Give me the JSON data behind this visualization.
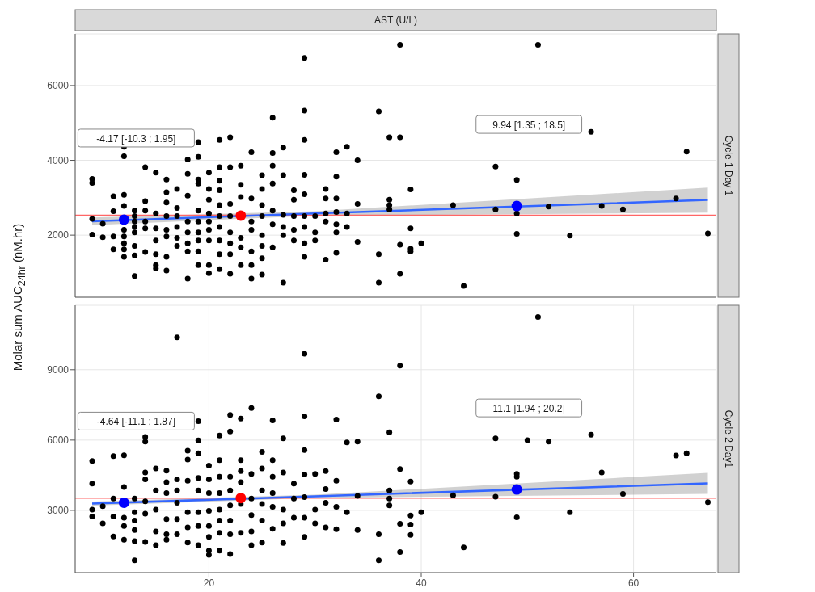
{
  "chart_data": [
    {
      "type": "scatter",
      "title": "AST (U/L)",
      "y2label": "Cycle 1 Day 1",
      "ylabel": "Molar sum AUC$_{24hr}$ (nM.hr)",
      "xlim": [
        7.4,
        67.8
      ],
      "xticks": [
        20,
        40,
        60
      ],
      "ylim": [
        340,
        7380
      ],
      "yticks": [
        2000,
        4000,
        6000
      ],
      "tick_labels": "y",
      "grid": true,
      "marker": "circle",
      "ref_lines": [
        {
          "axis": "y",
          "value": 2530,
          "color": "#ff6666"
        }
      ],
      "annotations": [
        "-4.17 [-10.3 ; 1.95]",
        "9.94 [1.35 ; 18.5]"
      ],
      "series": [
        {
          "type": "scatter",
          "color": "#000000",
          "x": [
            9,
            9,
            9,
            9,
            10,
            10,
            11,
            11,
            11,
            11,
            12,
            12,
            12,
            12,
            12,
            12,
            12,
            12,
            12,
            13,
            13,
            13,
            13,
            13,
            13,
            13,
            13,
            14,
            14,
            14,
            14,
            14,
            14,
            15,
            15,
            15,
            15,
            15,
            15,
            15,
            16,
            16,
            16,
            16,
            16,
            16,
            16,
            16,
            17,
            17,
            17,
            17,
            17,
            17,
            18,
            18,
            18,
            18,
            18,
            18,
            18,
            18,
            19,
            19,
            19,
            19,
            19,
            19,
            19,
            19,
            19,
            19,
            20,
            20,
            20,
            20,
            20,
            20,
            20,
            20,
            20,
            21,
            21,
            21,
            21,
            21,
            21,
            21,
            21,
            21,
            21,
            22,
            22,
            22,
            22,
            22,
            22,
            22,
            22,
            23,
            23,
            23,
            23,
            23,
            23,
            24,
            24,
            24,
            24,
            24,
            24,
            24,
            25,
            25,
            25,
            25,
            25,
            25,
            25,
            25,
            26,
            26,
            26,
            26,
            26,
            26,
            26,
            27,
            27,
            27,
            27,
            27,
            27,
            28,
            28,
            28,
            28,
            28,
            29,
            29,
            29,
            29,
            29,
            29,
            29,
            29,
            29,
            30,
            30,
            30,
            31,
            31,
            31,
            31,
            31,
            32,
            32,
            32,
            32,
            32,
            32,
            32,
            33,
            33,
            33,
            34,
            34,
            34,
            36,
            36,
            36,
            37,
            37,
            37,
            37,
            38,
            38,
            38,
            38,
            39,
            39,
            39,
            39,
            40,
            43,
            44,
            47,
            47,
            49,
            49,
            49,
            51,
            52,
            54,
            56,
            57,
            59,
            64,
            65,
            67
          ],
          "values": [
            3505,
            3396,
            2436,
            2015,
            2305,
            1942,
            3040,
            2640,
            1964,
            1622,
            4363,
            4108,
            3076,
            2778,
            2145,
            1964,
            1782,
            1622,
            1418,
            2654,
            2509,
            2364,
            2218,
            2073,
            1709,
            1455,
            909,
            3818,
            2909,
            2654,
            2364,
            2182,
            1549,
            3672,
            2582,
            2182,
            1855,
            1491,
            1200,
            1106,
            3490,
            3149,
            2872,
            2509,
            2145,
            1964,
            1418,
            1055,
            3236,
            2727,
            2509,
            2218,
            1927,
            1709,
            4021,
            3636,
            3054,
            2364,
            2073,
            1782,
            1564,
            837,
            4486,
            4094,
            3490,
            3381,
            2654,
            2364,
            2073,
            1855,
            1564,
            1200,
            3672,
            3236,
            2945,
            2582,
            2364,
            2145,
            1855,
            1200,
            982,
            4545,
            3818,
            3454,
            3200,
            2800,
            2509,
            2218,
            1855,
            1491,
            1091,
            4617,
            3818,
            2836,
            2509,
            2073,
            1782,
            1491,
            967,
            3854,
            3345,
            3018,
            1927,
            1673,
            1200,
            4217,
            2981,
            2364,
            2145,
            1564,
            1200,
            837,
            3600,
            3236,
            2800,
            2509,
            2000,
            1709,
            1382,
            946,
            5141,
            4196,
            3854,
            3381,
            2654,
            2291,
            1673,
            4341,
            3600,
            2545,
            2218,
            2000,
            728,
            3200,
            2945,
            2509,
            2145,
            1855,
            6740,
            5330,
            4545,
            3614,
            3091,
            2509,
            2218,
            1782,
            1418,
            2509,
            2073,
            1855,
            3236,
            2981,
            2582,
            2364,
            1345,
            4217,
            3563,
            2981,
            2618,
            2291,
            2073,
            1527,
            4363,
            2582,
            2218,
            4000,
            2836,
            1818,
            5309,
            1491,
            728,
            4617,
            2945,
            2800,
            2691,
            7090,
            4617,
            1745,
            967,
            3221,
            2182,
            1636,
            1564,
            1782,
            2800,
            640,
            3832,
            2691,
            3476,
            2582,
            2036,
            7090,
            2763,
            1985,
            4763,
            2778,
            2691,
            2981,
            4232,
            2044
          ]
        },
        {
          "type": "line",
          "marker": "none",
          "color": "#3366ff",
          "x": [
            9,
            30,
            67
          ],
          "values": [
            2370,
            2580,
            2940
          ],
          "lower": [
            2270,
            2520,
            2600
          ],
          "upper": [
            2470,
            2640,
            3270
          ]
        },
        {
          "type": "scatter",
          "color": "#0000ff",
          "x": [
            12,
            49
          ],
          "values": [
            2414,
            2778
          ]
        },
        {
          "type": "scatter",
          "color": "#ff0000",
          "x": [
            23
          ],
          "values": [
            2523
          ]
        }
      ]
    },
    {
      "type": "scatter",
      "y2label": "Cycle 2 Day1",
      "xlim": [
        7.4,
        67.8
      ],
      "xticks": [
        20,
        40,
        60
      ],
      "ylim": [
        344,
        11750
      ],
      "yticks": [
        3000,
        6000,
        9000
      ],
      "grid": true,
      "marker": "circle",
      "ref_lines": [
        {
          "axis": "y",
          "value": 3527,
          "color": "#ff6666"
        }
      ],
      "annotations": [
        "-4.64 [-11.1 ; 1.87]",
        "11.1 [1.94 ; 20.2]"
      ],
      "series": [
        {
          "type": "scatter",
          "color": "#000000",
          "x": [
            9,
            9,
            9,
            9,
            10,
            10,
            11,
            11,
            11,
            11,
            12,
            12,
            12,
            12,
            12,
            13,
            13,
            13,
            13,
            13,
            13,
            14,
            14,
            14,
            14,
            14,
            14,
            14,
            15,
            15,
            15,
            15,
            15,
            16,
            16,
            16,
            16,
            16,
            16,
            17,
            17,
            17,
            17,
            17,
            17,
            18,
            18,
            18,
            18,
            18,
            18,
            19,
            19,
            19,
            19,
            19,
            19,
            19,
            19,
            20,
            20,
            20,
            20,
            20,
            20,
            20,
            20,
            21,
            21,
            21,
            21,
            21,
            21,
            21,
            21,
            22,
            22,
            22,
            22,
            22,
            22,
            22,
            22,
            23,
            23,
            23,
            23,
            23,
            23,
            24,
            24,
            24,
            24,
            24,
            24,
            25,
            25,
            25,
            25,
            25,
            25,
            26,
            26,
            26,
            26,
            26,
            26,
            27,
            27,
            27,
            27,
            27,
            28,
            28,
            28,
            29,
            29,
            29,
            29,
            29,
            29,
            29,
            30,
            30,
            30,
            31,
            31,
            31,
            31,
            32,
            32,
            32,
            32,
            33,
            33,
            34,
            34,
            34,
            36,
            36,
            36,
            37,
            37,
            37,
            37,
            38,
            38,
            38,
            38,
            39,
            39,
            39,
            39,
            40,
            43,
            44,
            47,
            47,
            49,
            49,
            49,
            50,
            51,
            52,
            54,
            56,
            57,
            59,
            64,
            65,
            67
          ],
          "values": [
            5106,
            4147,
            3035,
            2743,
            3176,
            2450,
            5317,
            3503,
            2743,
            1889,
            5352,
            3995,
            2684,
            2333,
            1748,
            3503,
            2918,
            2567,
            2158,
            1690,
            871,
            6136,
            5937,
            4615,
            4322,
            3386,
            2860,
            1655,
            4790,
            3854,
            3035,
            2099,
            1514,
            4697,
            4205,
            3737,
            2626,
            1982,
            1748,
            10383,
            4322,
            3854,
            3328,
            2626,
            1982,
            5551,
            5164,
            4264,
            2918,
            2275,
            1631,
            6802,
            5983,
            5434,
            4381,
            3854,
            2918,
            2333,
            1514,
            4907,
            4322,
            3737,
            2977,
            2333,
            1865,
            1280,
            1105,
            6194,
            5141,
            4439,
            3737,
            3035,
            2567,
            2041,
            1280,
            7072,
            6370,
            4439,
            3854,
            3211,
            2567,
            1982,
            1140,
            6919,
            5141,
            4673,
            4205,
            3269,
            2041,
            7364,
            4556,
            3503,
            2801,
            2099,
            1514,
            5492,
            4790,
            3854,
            3269,
            2567,
            1631,
            6837,
            5141,
            4439,
            3737,
            3152,
            2216,
            6077,
            4615,
            3035,
            2450,
            1608,
            4147,
            3503,
            2684,
            9681,
            7013,
            5574,
            4533,
            3562,
            2684,
            1865,
            4556,
            3035,
            2450,
            4673,
            3913,
            3328,
            2275,
            6873,
            4264,
            3152,
            2193,
            5901,
            2918,
            5937,
            3620,
            2158,
            7867,
            1982,
            871,
            6334,
            3854,
            3503,
            3211,
            9178,
            4767,
            2427,
            1222,
            4228,
            2778,
            2392,
            1959,
            2918,
            3644,
            1421,
            6077,
            3585,
            4556,
            4439,
            2708,
            5995,
            11249,
            5937,
            2918,
            6229,
            4615,
            3702,
            5340,
            5434,
            3351
          ]
        },
        {
          "type": "line",
          "marker": "none",
          "color": "#3366ff",
          "x": [
            9,
            30,
            67
          ],
          "values": [
            3290,
            3600,
            4150
          ],
          "lower": [
            3200,
            3530,
            3700
          ],
          "upper": [
            3380,
            3670,
            4600
          ]
        },
        {
          "type": "scatter",
          "color": "#0000ff",
          "x": [
            12,
            49
          ],
          "values": [
            3328,
            3889
          ]
        },
        {
          "type": "scatter",
          "color": "#ff0000",
          "x": [
            23
          ],
          "values": [
            3527
          ]
        }
      ]
    }
  ]
}
